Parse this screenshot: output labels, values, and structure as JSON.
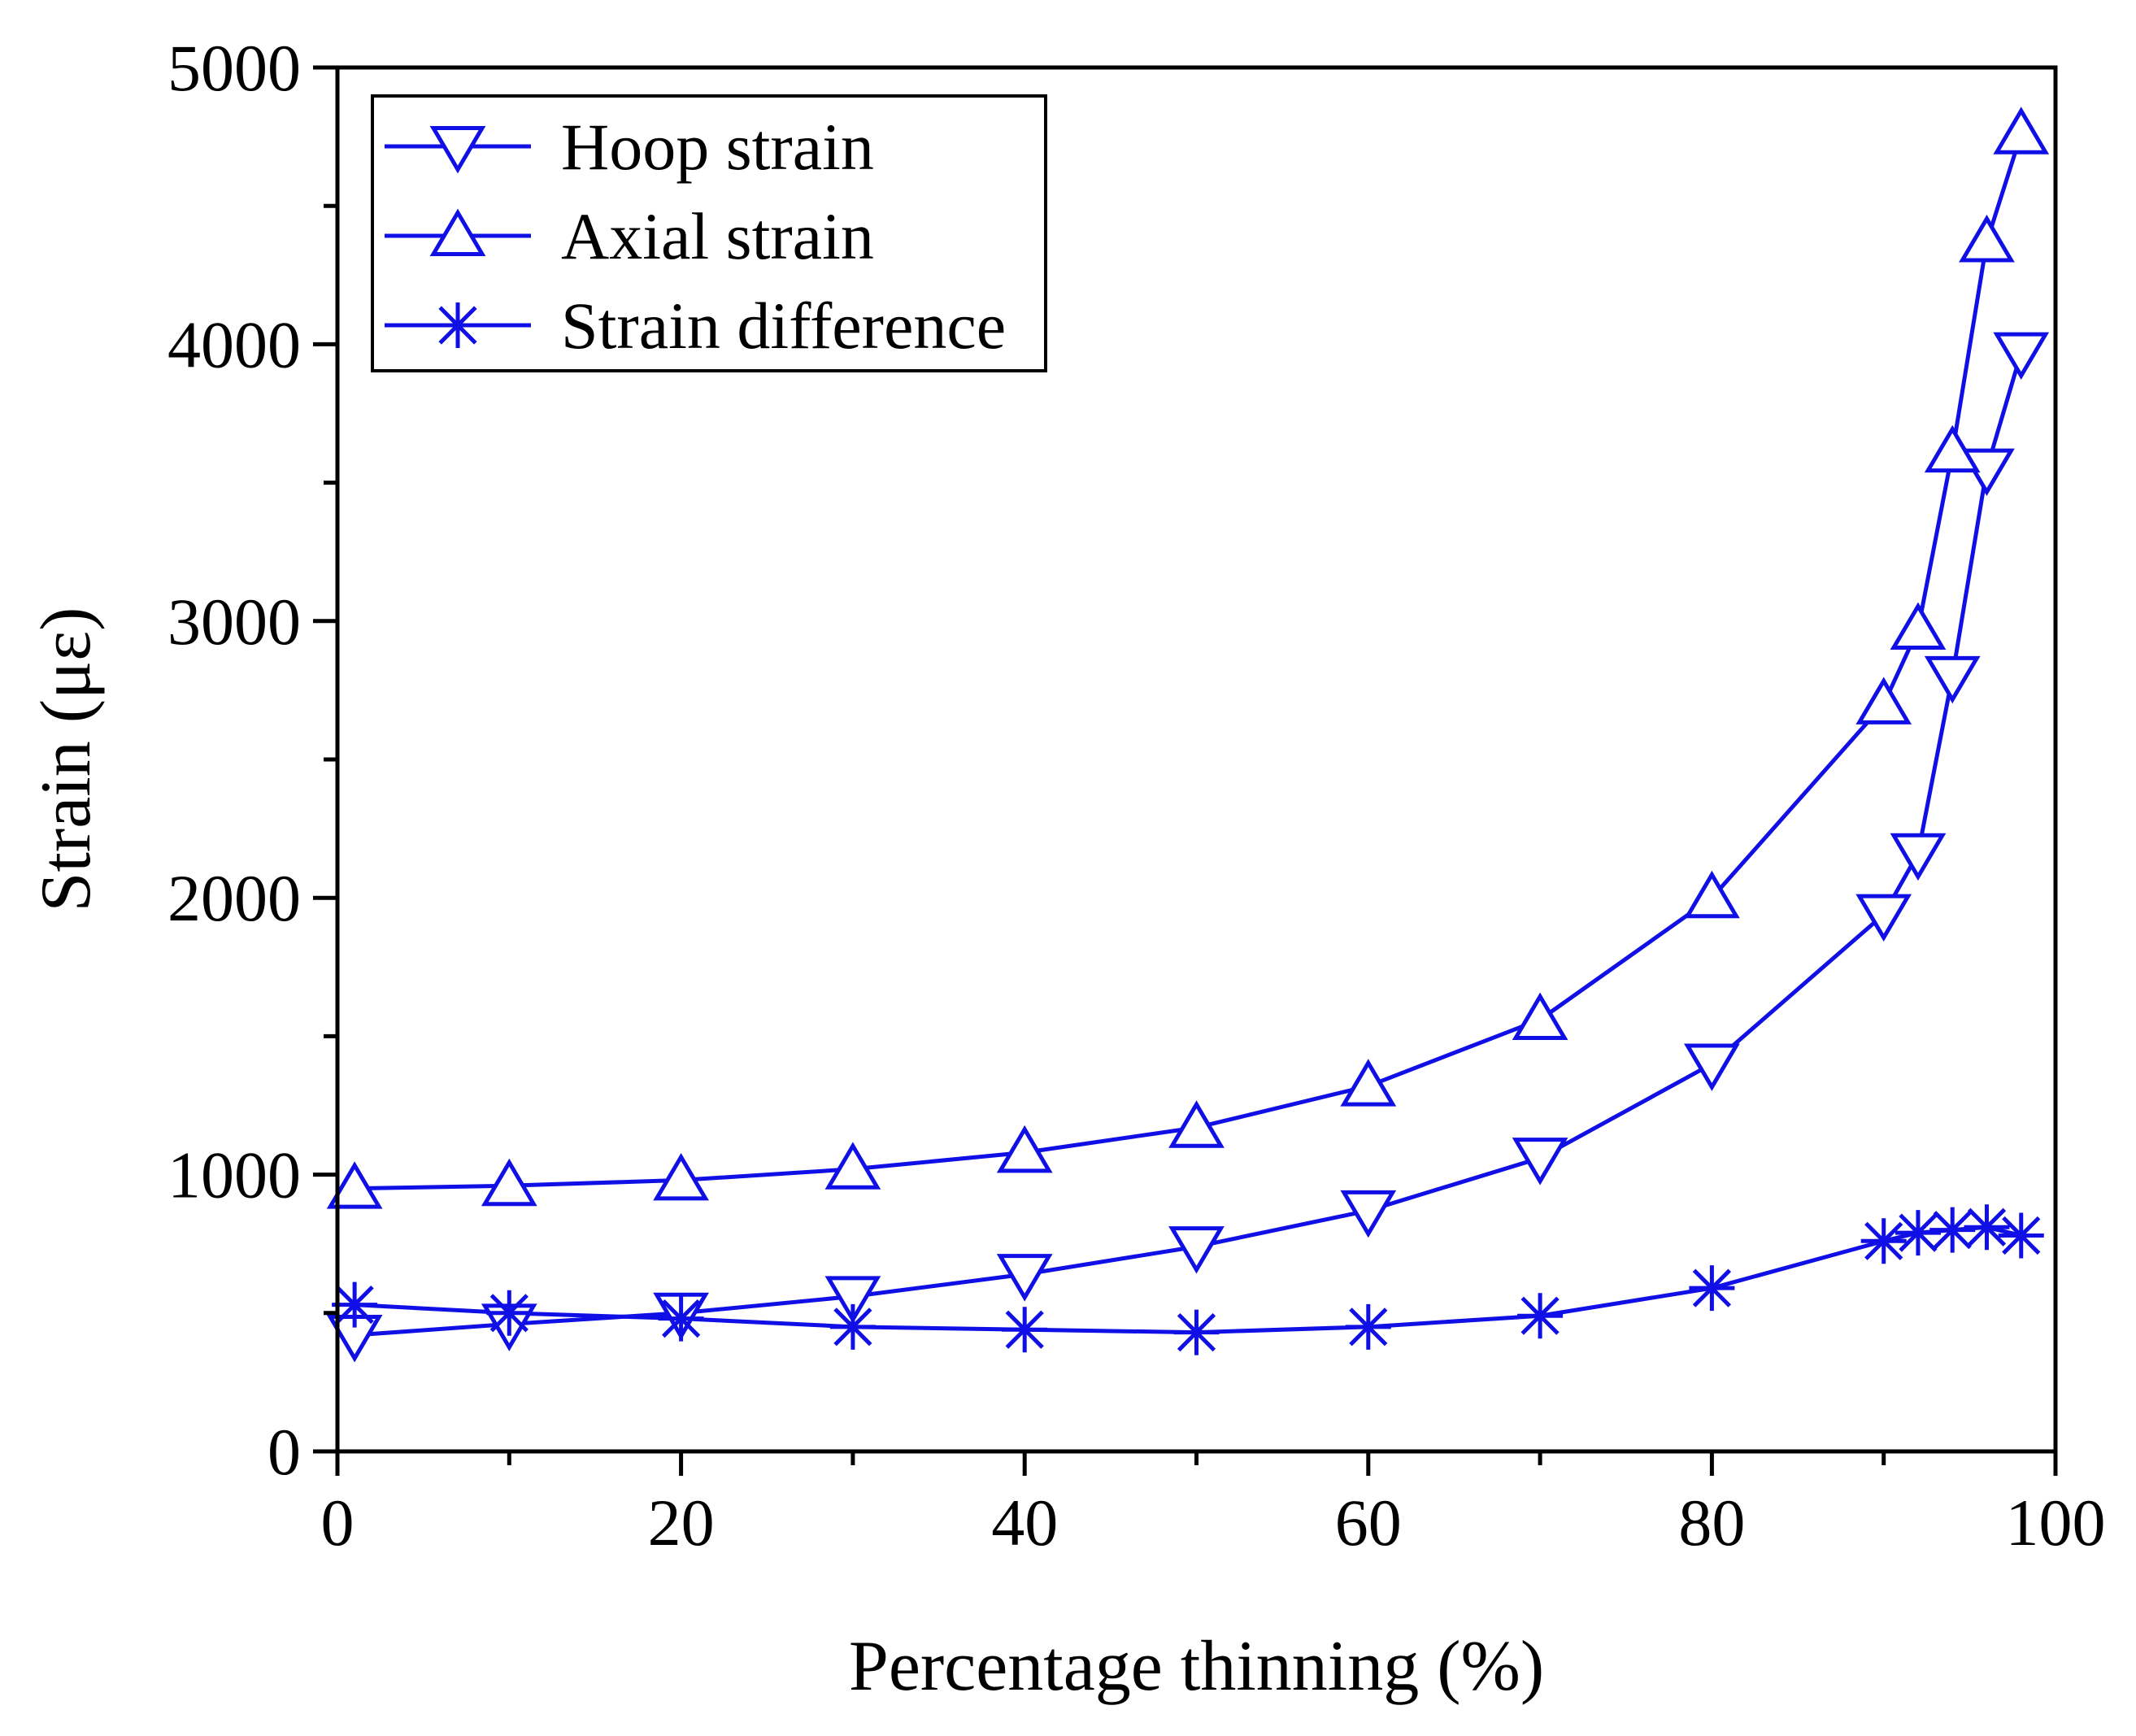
{
  "chart_data": {
    "type": "line",
    "title": "",
    "xlabel": "Percentage thinning (%)",
    "ylabel": "Strain (με)",
    "xlim": [
      0,
      100
    ],
    "ylim": [
      0,
      5000
    ],
    "x_ticks": [
      0,
      20,
      40,
      60,
      80,
      100
    ],
    "x_tick_labels": [
      "0",
      "20",
      "40",
      "60",
      "80",
      "100"
    ],
    "y_ticks": [
      0,
      1000,
      2000,
      3000,
      4000,
      5000
    ],
    "y_tick_labels": [
      "0",
      "1000",
      "2000",
      "3000",
      "4000",
      "5000"
    ],
    "grid": false,
    "legend_position": "top-left",
    "line_color": "#1010e6",
    "series": [
      {
        "name": "Hoop strain",
        "marker": "triangle-down",
        "x": [
          1,
          10,
          20,
          30,
          40,
          50,
          60,
          70,
          80,
          90,
          92,
          94,
          96,
          98
        ],
        "values": [
          420,
          460,
          500,
          560,
          640,
          740,
          870,
          1060,
          1400,
          1940,
          2160,
          2800,
          3550,
          3970
        ]
      },
      {
        "name": "Axial strain",
        "marker": "triangle-up",
        "x": [
          1,
          10,
          20,
          30,
          40,
          50,
          60,
          70,
          80,
          90,
          92,
          94,
          96,
          98
        ],
        "values": [
          950,
          960,
          980,
          1020,
          1080,
          1170,
          1320,
          1560,
          2000,
          2700,
          2970,
          3610,
          4370,
          4760
        ]
      },
      {
        "name": "Strain difference",
        "marker": "asterisk",
        "x": [
          1,
          10,
          20,
          30,
          40,
          50,
          60,
          70,
          80,
          90,
          92,
          94,
          96,
          98
        ],
        "values": [
          530,
          500,
          480,
          450,
          440,
          430,
          450,
          490,
          590,
          760,
          790,
          800,
          810,
          780
        ]
      }
    ]
  }
}
